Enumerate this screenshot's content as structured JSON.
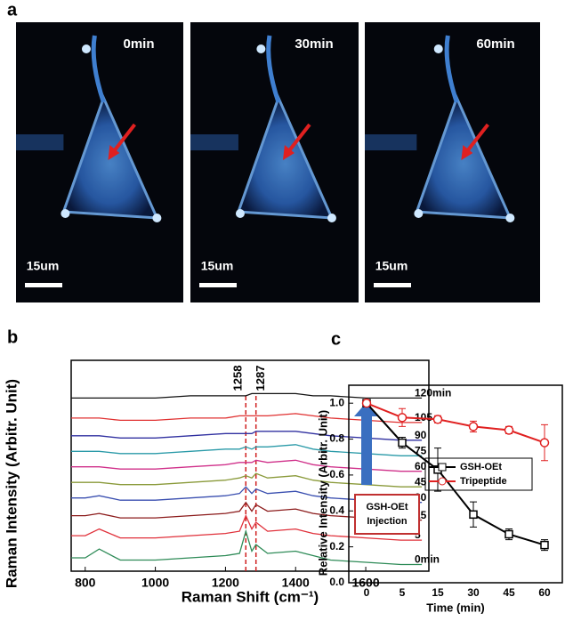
{
  "panels": [
    "a",
    "b",
    "c"
  ],
  "images": [
    {
      "time": "0min",
      "scale": "15um"
    },
    {
      "time": "30min",
      "scale": "15um"
    },
    {
      "time": "60min",
      "scale": "15um"
    }
  ],
  "chart_data": [
    {
      "type": "line",
      "xlabel": "Raman Shift (cm⁻¹)",
      "ylabel": "Raman Intensity (Arbitr. Unit)",
      "x": [
        760,
        800,
        840,
        900,
        1000,
        1100,
        1200,
        1240,
        1258,
        1275,
        1287,
        1320,
        1400,
        1450,
        1500,
        1600,
        1700,
        1760
      ],
      "xlim": [
        760,
        1780
      ],
      "xticks": [
        800,
        1000,
        1200,
        1400,
        1600
      ],
      "ylim": [
        0,
        9.5
      ],
      "annotations": [
        {
          "x": 1258,
          "label": "1258"
        },
        {
          "x": 1287,
          "label": "1287"
        }
      ],
      "series": [
        {
          "name": "0min",
          "color": "#2e8b57",
          "values": [
            0.6,
            0.6,
            1.0,
            0.5,
            0.5,
            0.6,
            0.7,
            0.8,
            1.8,
            0.9,
            1.2,
            0.8,
            0.9,
            0.7,
            0.5,
            0.4,
            0.3,
            0.3
          ]
        },
        {
          "name": "5",
          "color": "#e0303a",
          "values": [
            1.6,
            1.6,
            1.9,
            1.5,
            1.5,
            1.6,
            1.7,
            1.8,
            2.5,
            1.9,
            2.2,
            1.8,
            1.9,
            1.7,
            1.6,
            1.5,
            1.4,
            1.4
          ]
        },
        {
          "name": "15",
          "color": "#8b1a1a",
          "values": [
            2.5,
            2.5,
            2.6,
            2.4,
            2.4,
            2.5,
            2.6,
            2.7,
            3.1,
            2.7,
            3.0,
            2.7,
            2.8,
            2.6,
            2.5,
            2.4,
            2.3,
            2.3
          ]
        },
        {
          "name": "30",
          "color": "#3a4fb0",
          "values": [
            3.3,
            3.3,
            3.4,
            3.2,
            3.2,
            3.3,
            3.4,
            3.5,
            3.8,
            3.5,
            3.7,
            3.5,
            3.6,
            3.4,
            3.3,
            3.2,
            3.1,
            3.1
          ]
        },
        {
          "name": "45",
          "color": "#8a9a3a",
          "values": [
            4.0,
            4.0,
            4.0,
            3.9,
            3.9,
            4.0,
            4.1,
            4.2,
            4.3,
            4.2,
            4.4,
            4.2,
            4.3,
            4.1,
            4.0,
            3.9,
            3.8,
            3.8
          ]
        },
        {
          "name": "60",
          "color": "#d0308a",
          "values": [
            4.7,
            4.7,
            4.7,
            4.6,
            4.6,
            4.7,
            4.8,
            4.9,
            4.9,
            4.9,
            5.0,
            4.9,
            5.0,
            4.8,
            4.7,
            4.6,
            4.5,
            4.5
          ]
        },
        {
          "name": "75",
          "color": "#2a9aa8",
          "values": [
            5.4,
            5.4,
            5.4,
            5.3,
            5.3,
            5.4,
            5.5,
            5.5,
            5.6,
            5.5,
            5.6,
            5.6,
            5.7,
            5.5,
            5.4,
            5.3,
            5.2,
            5.2
          ]
        },
        {
          "name": "90",
          "color": "#3030a0",
          "values": [
            6.1,
            6.1,
            6.1,
            6.0,
            6.0,
            6.1,
            6.2,
            6.2,
            6.2,
            6.2,
            6.3,
            6.3,
            6.3,
            6.2,
            6.1,
            6.0,
            5.9,
            5.9
          ]
        },
        {
          "name": "105",
          "color": "#e03030",
          "values": [
            6.9,
            6.9,
            6.9,
            6.8,
            6.8,
            6.9,
            6.9,
            7.0,
            7.0,
            7.0,
            7.0,
            7.0,
            7.1,
            7.0,
            6.9,
            6.8,
            6.7,
            6.7
          ]
        },
        {
          "name": "120min",
          "color": "#111111",
          "values": [
            7.8,
            7.8,
            7.8,
            7.8,
            7.8,
            7.9,
            7.9,
            7.9,
            7.9,
            8.0,
            8.0,
            8.0,
            8.0,
            7.9,
            7.9,
            7.8,
            7.8,
            7.8
          ]
        }
      ]
    },
    {
      "type": "errorline",
      "xlabel": "Time (min)",
      "ylabel": "Relative Intensity (Arbitr. Unit)",
      "categories": [
        "0",
        "5",
        "15",
        "30",
        "45",
        "60"
      ],
      "ylim": [
        0,
        1.1
      ],
      "yticks": [
        {
          "value": 0,
          "label": "0.0"
        },
        {
          "value": 0.2,
          "label": "0.2"
        },
        {
          "value": 0.4,
          "label": "0.4"
        },
        {
          "value": 0.6,
          "label": "0.6"
        },
        {
          "value": 0.8,
          "label": "0.8"
        },
        {
          "value": 1,
          "label": "1.0"
        }
      ],
      "annotation": [
        "GSH-OEt",
        "Injection"
      ],
      "series": [
        {
          "name": "GSH-OEt",
          "color": "#000000",
          "marker": "square",
          "values": [
            1.0,
            0.78,
            0.63,
            0.38,
            0.27,
            0.21
          ],
          "errors": [
            0,
            0.03,
            0.12,
            0.07,
            0.03,
            0.03
          ]
        },
        {
          "name": "Tripeptide",
          "color": "#e02020",
          "marker": "circle",
          "values": [
            1.0,
            0.92,
            0.91,
            0.87,
            0.85,
            0.78
          ],
          "errors": [
            0,
            0.05,
            0.02,
            0.03,
            0.02,
            0.1
          ]
        }
      ]
    }
  ]
}
